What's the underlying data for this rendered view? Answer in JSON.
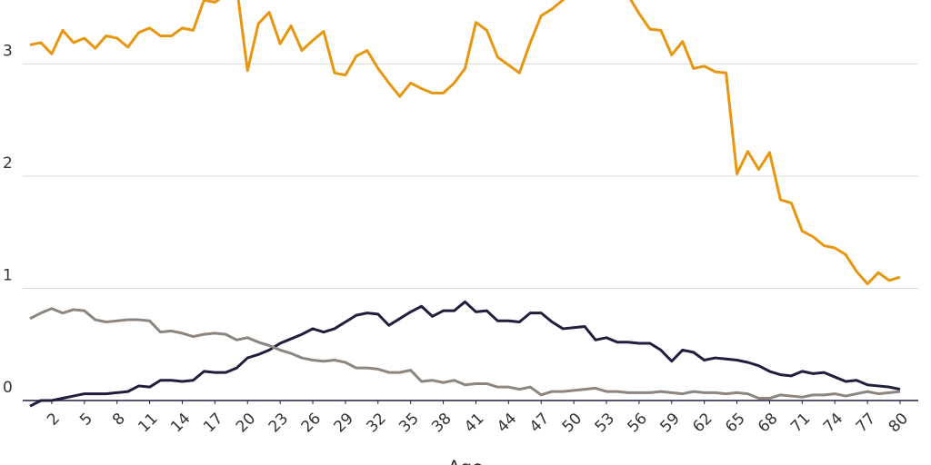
{
  "chart_data": {
    "type": "line",
    "x_label": "Age",
    "x": [
      0,
      1,
      2,
      3,
      4,
      5,
      6,
      7,
      8,
      9,
      10,
      11,
      12,
      13,
      14,
      15,
      16,
      17,
      18,
      19,
      20,
      21,
      22,
      23,
      24,
      25,
      26,
      27,
      28,
      29,
      30,
      31,
      32,
      33,
      34,
      35,
      36,
      37,
      38,
      39,
      40,
      41,
      42,
      43,
      44,
      45,
      46,
      47,
      48,
      49,
      50,
      51,
      52,
      53,
      54,
      55,
      56,
      57,
      58,
      59,
      60,
      61,
      62,
      63,
      64,
      65,
      66,
      67,
      68,
      69,
      70,
      71,
      72,
      73,
      74,
      75,
      76,
      77,
      78,
      79,
      80
    ],
    "series": [
      {
        "color": "#e8960f",
        "values": [
          3.17,
          3.19,
          3.09,
          3.3,
          3.19,
          3.23,
          3.14,
          3.25,
          3.23,
          3.15,
          3.28,
          3.32,
          3.25,
          3.25,
          3.32,
          3.3,
          3.57,
          3.55,
          3.62,
          3.69,
          2.94,
          3.36,
          3.46,
          3.18,
          3.34,
          3.12,
          3.21,
          3.29,
          2.92,
          2.9,
          3.07,
          3.12,
          2.96,
          2.83,
          2.71,
          2.83,
          2.78,
          2.74,
          2.74,
          2.83,
          2.96,
          3.37,
          3.3,
          3.06,
          2.99,
          2.92,
          3.19,
          3.43,
          3.49,
          3.57,
          3.69,
          3.77,
          3.81,
          3.8,
          3.73,
          3.61,
          3.45,
          3.31,
          3.3,
          3.08,
          3.2,
          2.96,
          2.98,
          2.93,
          2.92,
          2.02,
          2.22,
          2.06,
          2.21,
          1.79,
          1.76,
          1.51,
          1.46,
          1.38,
          1.36,
          1.3,
          1.15,
          1.04,
          1.14,
          1.07,
          1.1
        ]
      },
      {
        "color": "#1f1f3d",
        "values": [
          -0.05,
          0,
          0,
          0.02,
          0.04,
          0.06,
          0.06,
          0.06,
          0.07,
          0.08,
          0.13,
          0.12,
          0.18,
          0.18,
          0.17,
          0.18,
          0.26,
          0.25,
          0.25,
          0.29,
          0.38,
          0.41,
          0.45,
          0.51,
          0.55,
          0.59,
          0.64,
          0.61,
          0.64,
          0.7,
          0.76,
          0.78,
          0.77,
          0.67,
          0.73,
          0.79,
          0.84,
          0.75,
          0.8,
          0.8,
          0.88,
          0.79,
          0.8,
          0.71,
          0.71,
          0.7,
          0.78,
          0.78,
          0.7,
          0.64,
          0.65,
          0.66,
          0.54,
          0.56,
          0.52,
          0.52,
          0.51,
          0.51,
          0.45,
          0.35,
          0.45,
          0.43,
          0.36,
          0.38,
          0.37,
          0.36,
          0.34,
          0.31,
          0.26,
          0.23,
          0.22,
          0.26,
          0.24,
          0.25,
          0.21,
          0.17,
          0.18,
          0.14,
          0.13,
          0.12,
          0.1
        ]
      },
      {
        "color": "#8c8580",
        "values": [
          0.73,
          0.78,
          0.82,
          0.78,
          0.81,
          0.8,
          0.72,
          0.7,
          0.71,
          0.72,
          0.72,
          0.71,
          0.61,
          0.62,
          0.6,
          0.57,
          0.59,
          0.6,
          0.59,
          0.54,
          0.56,
          0.52,
          0.49,
          0.45,
          0.42,
          0.38,
          0.36,
          0.35,
          0.36,
          0.34,
          0.29,
          0.29,
          0.28,
          0.25,
          0.25,
          0.27,
          0.17,
          0.18,
          0.16,
          0.18,
          0.14,
          0.15,
          0.15,
          0.12,
          0.12,
          0.1,
          0.12,
          0.05,
          0.08,
          0.08,
          0.09,
          0.1,
          0.11,
          0.08,
          0.08,
          0.07,
          0.07,
          0.07,
          0.08,
          0.07,
          0.06,
          0.08,
          0.07,
          0.07,
          0.06,
          0.07,
          0.06,
          0.02,
          0.02,
          0.05,
          0.04,
          0.03,
          0.05,
          0.05,
          0.06,
          0.04,
          0.06,
          0.08,
          0.06,
          0.07,
          0.08
        ]
      }
    ],
    "xlim": [
      0,
      80
    ],
    "xticks": [
      2,
      5,
      8,
      11,
      14,
      17,
      20,
      23,
      26,
      29,
      32,
      35,
      38,
      41,
      44,
      47,
      50,
      53,
      56,
      59,
      62,
      65,
      68,
      71,
      74,
      77,
      80
    ],
    "ylim": [
      0,
      3.57
    ],
    "yticks": [
      0,
      1,
      2,
      3
    ],
    "grid": true
  }
}
